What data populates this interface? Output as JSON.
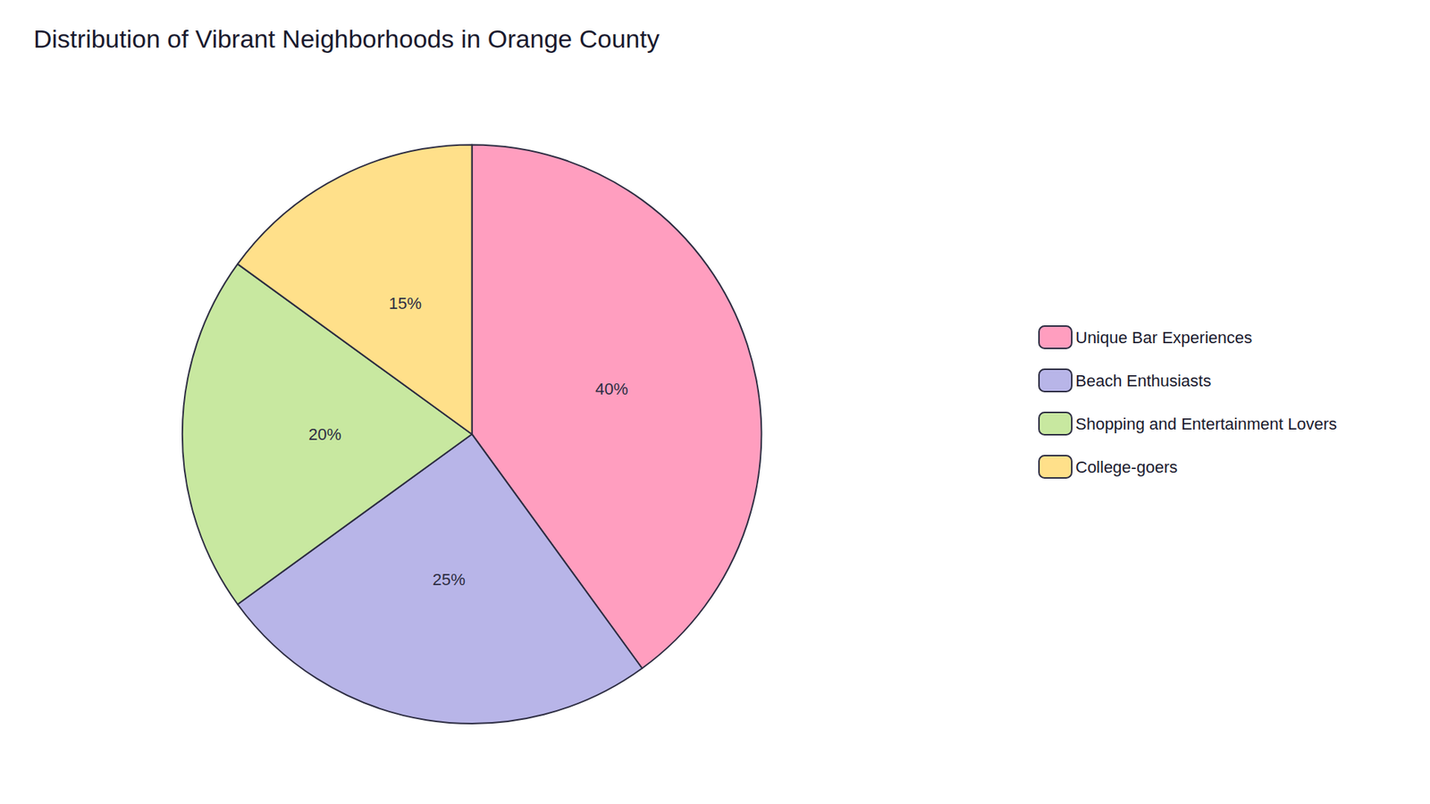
{
  "chart_data": {
    "type": "pie",
    "title": "Distribution of Vibrant Neighborhoods in Orange County",
    "categories": [
      "Unique Bar Experiences",
      "Beach Enthusiasts",
      "Shopping and Entertainment Lovers",
      "College-goers"
    ],
    "values": [
      40,
      25,
      20,
      15
    ],
    "value_labels": [
      "40%",
      "25%",
      "20%",
      "15%"
    ],
    "colors": [
      "#FF9EBF",
      "#B8B5E8",
      "#C8E8A0",
      "#FFE08A"
    ],
    "data_labels": true,
    "legend": "right"
  }
}
